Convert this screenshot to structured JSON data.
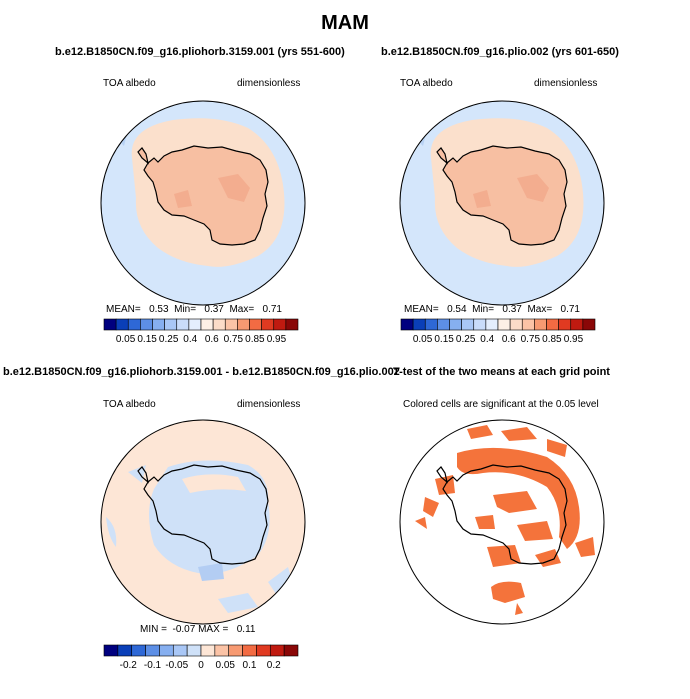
{
  "title": "MAM",
  "colors": {
    "ocean_low": "#d4e6fb",
    "ocean_cold": "#b8d2f4",
    "coast_band": "#fbe0cc",
    "ice_sheet": "#f7bfa2",
    "ice_dark": "#f3ad8f",
    "diff_pos": "#fde6d6",
    "diff_neg": "#cfe1f8",
    "sig": "#f4733b",
    "coast": "#000000"
  },
  "panels": [
    {
      "title": "b.e12.B1850CN.f09_g16.pliohorb.3159.001 (yrs 551-600)",
      "left_label": "TOA albedo",
      "right_label": "dimensionless",
      "stats": {
        "mean_label": "MEAN=",
        "mean": "0.53",
        "min_label": "Min=",
        "min": "0.37",
        "max_label": "Max=",
        "max": "0.71"
      },
      "colorbar_labels": [
        "0.05",
        "0.15",
        "0.25",
        "0.4",
        "0.6",
        "0.75",
        "0.85",
        "0.95"
      ]
    },
    {
      "title": "b.e12.B1850CN.f09_g16.plio.002 (yrs 601-650)",
      "left_label": "TOA albedo",
      "right_label": "dimensionless",
      "stats": {
        "mean_label": "MEAN=",
        "mean": "0.54",
        "min_label": "Min=",
        "min": "0.37",
        "max_label": "Max=",
        "max": "0.71"
      },
      "colorbar_labels": [
        "0.05",
        "0.15",
        "0.25",
        "0.4",
        "0.6",
        "0.75",
        "0.85",
        "0.95"
      ]
    },
    {
      "title": "b.e12.B1850CN.f09_g16.pliohorb.3159.001 - b.e12.B1850CN.f09_g16.plio.002",
      "left_label": "TOA albedo",
      "right_label": "dimensionless",
      "stats": {
        "min_label": "MIN =",
        "min": "-0.07",
        "max_label": "MAX =",
        "max": "0.11"
      },
      "colorbar_labels": [
        "-0.2",
        "-0.1",
        "-0.05",
        "0",
        "0.05",
        "0.1",
        "0.2"
      ]
    },
    {
      "title": "T-test of the two means at each grid point",
      "subtitle": "Colored cells are significant at the 0.05 level"
    }
  ],
  "chart_data": [
    {
      "type": "heatmap",
      "projection": "south polar stereographic",
      "variable": "TOA albedo",
      "units": "dimensionless",
      "mean": 0.53,
      "min": 0.37,
      "max": 0.71,
      "levels": [
        0.05,
        0.1,
        0.15,
        0.2,
        0.25,
        0.3,
        0.4,
        0.5,
        0.6,
        0.7,
        0.75,
        0.8,
        0.85,
        0.9,
        0.95
      ],
      "palette": [
        "#00007f",
        "#0a3fb8",
        "#2e68d6",
        "#5d8fe6",
        "#86aff0",
        "#a9c7f6",
        "#c9dcfa",
        "#e4eefd",
        "#fdf0e6",
        "#fcdcc8",
        "#fbc3a6",
        "#f79a72",
        "#f26b43",
        "#e03a21",
        "#c01a10",
        "#8a0707"
      ],
      "regions": [
        {
          "region": "open ocean",
          "approx_value": 0.35
        },
        {
          "region": "sea-ice margin",
          "approx_value": 0.55
        },
        {
          "region": "Antarctic ice sheet",
          "approx_value": 0.67
        }
      ]
    },
    {
      "type": "heatmap",
      "projection": "south polar stereographic",
      "variable": "TOA albedo",
      "units": "dimensionless",
      "mean": 0.54,
      "min": 0.37,
      "max": 0.71,
      "levels": [
        0.05,
        0.1,
        0.15,
        0.2,
        0.25,
        0.3,
        0.4,
        0.5,
        0.6,
        0.7,
        0.75,
        0.8,
        0.85,
        0.9,
        0.95
      ],
      "regions": [
        {
          "region": "open ocean",
          "approx_value": 0.35
        },
        {
          "region": "sea-ice margin",
          "approx_value": 0.56
        },
        {
          "region": "Antarctic ice sheet",
          "approx_value": 0.67
        }
      ]
    },
    {
      "type": "heatmap",
      "projection": "south polar stereographic",
      "variable": "TOA albedo difference",
      "units": "dimensionless",
      "min": -0.07,
      "max": 0.11,
      "levels": [
        -0.2,
        -0.15,
        -0.1,
        -0.075,
        -0.05,
        -0.025,
        0,
        0.025,
        0.05,
        0.075,
        0.1,
        0.15,
        0.2
      ],
      "palette": [
        "#00007f",
        "#0a3fb8",
        "#2e68d6",
        "#5d8fe6",
        "#86aff0",
        "#a9c7f6",
        "#cfe1f8",
        "#fde6d6",
        "#fbc3a6",
        "#f79a72",
        "#f26b43",
        "#e03a21",
        "#c01a10",
        "#8a0707"
      ],
      "regions": [
        {
          "region": "outer ocean ring",
          "approx_value": 0.01
        },
        {
          "region": "interior / near coast",
          "approx_value": -0.01
        }
      ]
    },
    {
      "type": "heatmap",
      "projection": "south polar stereographic",
      "variable": "t-test significance",
      "significance_level": 0.05,
      "significant_color": "#f4733b",
      "regions": [
        {
          "region": "East Antarctic plateau and surrounding ring",
          "significant": true
        },
        {
          "region": "Antarctic Peninsula",
          "significant": true
        }
      ]
    }
  ]
}
